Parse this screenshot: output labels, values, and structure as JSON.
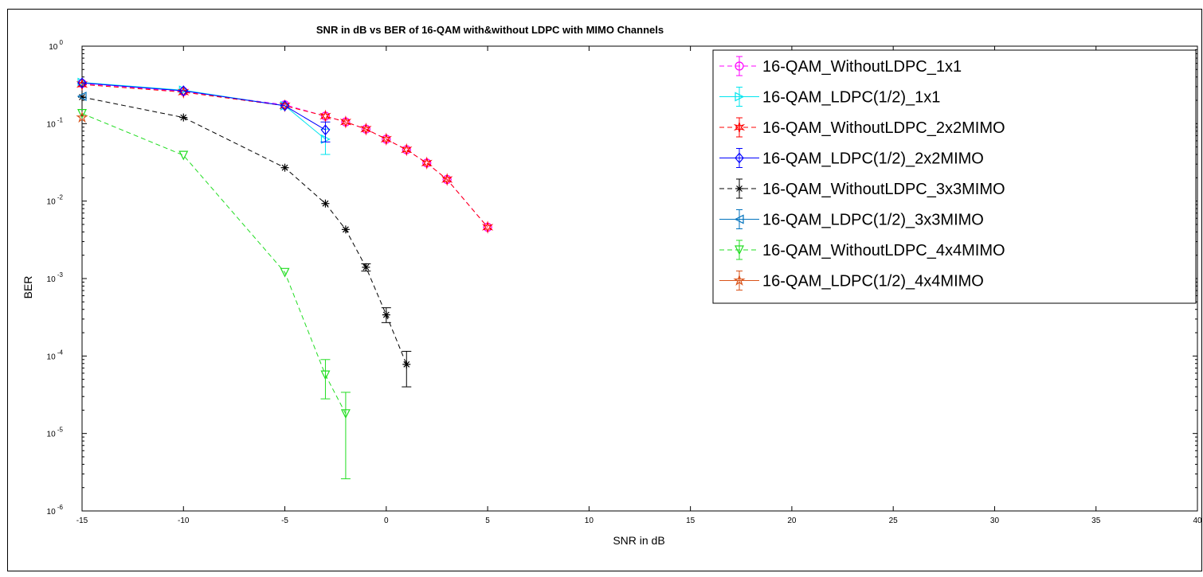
{
  "chart_data": {
    "type": "line",
    "title": "SNR in dB vs BER of  16-QAM with&without LDPC with MIMO Channels",
    "xlabel": "SNR in dB",
    "ylabel": "BER",
    "xlim": [
      -15,
      40
    ],
    "ylim": [
      1e-06,
      1
    ],
    "yscale": "log",
    "grid": false,
    "legend_position": "top-right",
    "x_ticks": [
      "-15",
      "-10",
      "-5",
      "0",
      "5",
      "10",
      "15",
      "20",
      "25",
      "30",
      "35",
      "40"
    ],
    "y_ticks": [
      {
        "base": "10",
        "exp": "0"
      },
      {
        "base": "10",
        "exp": "-1"
      },
      {
        "base": "10",
        "exp": "-2"
      },
      {
        "base": "10",
        "exp": "-3"
      },
      {
        "base": "10",
        "exp": "-4"
      },
      {
        "base": "10",
        "exp": "-5"
      },
      {
        "base": "10",
        "exp": "-6"
      }
    ],
    "series": [
      {
        "name": "16-QAM_WithoutLDPC_1x1",
        "color": "#ff00ff",
        "dash": "dashed",
        "marker": "circle",
        "x": [
          -15,
          -10,
          -5,
          -3,
          -2,
          -1,
          0,
          1,
          2,
          3,
          5
        ],
        "y": [
          0.33,
          0.26,
          0.175,
          0.125,
          0.105,
          0.085,
          0.063,
          0.046,
          0.031,
          0.019,
          0.0046
        ],
        "err": [
          [
            0.33,
            0.33
          ],
          [
            0.26,
            0.26
          ],
          [
            0.175,
            0.175
          ],
          [
            0.125,
            0.125
          ],
          [
            0.105,
            0.105
          ],
          [
            0.085,
            0.085
          ],
          [
            0.063,
            0.063
          ],
          [
            0.046,
            0.046
          ],
          [
            0.031,
            0.031
          ],
          [
            0.019,
            0.019
          ],
          [
            0.0046,
            0.0046
          ]
        ]
      },
      {
        "name": "16-QAM_LDPC(1/2)_1x1",
        "color": "#00e5ee",
        "dash": "solid",
        "marker": "triangle-right",
        "x": [
          -15,
          -10,
          -5,
          -3
        ],
        "y": [
          0.34,
          0.27,
          0.17,
          0.063
        ],
        "err": [
          [
            0.34,
            0.34
          ],
          [
            0.27,
            0.27
          ],
          [
            0.17,
            0.17
          ],
          [
            0.04,
            0.085
          ]
        ]
      },
      {
        "name": "16-QAM_WithoutLDPC_2x2MIMO",
        "color": "#ff0000",
        "dash": "dashed",
        "marker": "hexagram",
        "x": [
          -15,
          -10,
          -5,
          -3,
          -2,
          -1,
          0,
          1,
          2,
          3,
          5
        ],
        "y": [
          0.32,
          0.255,
          0.17,
          0.125,
          0.105,
          0.085,
          0.063,
          0.046,
          0.031,
          0.019,
          0.0046
        ],
        "err": [
          [
            0.32,
            0.32
          ],
          [
            0.255,
            0.255
          ],
          [
            0.17,
            0.17
          ],
          [
            0.125,
            0.125
          ],
          [
            0.105,
            0.105
          ],
          [
            0.085,
            0.085
          ],
          [
            0.063,
            0.063
          ],
          [
            0.046,
            0.046
          ],
          [
            0.031,
            0.031
          ],
          [
            0.019,
            0.019
          ],
          [
            0.0046,
            0.0046
          ]
        ]
      },
      {
        "name": "16-QAM_LDPC(1/2)_2x2MIMO",
        "color": "#0000ff",
        "dash": "solid",
        "marker": "diamond",
        "x": [
          -15,
          -10,
          -5,
          -3
        ],
        "y": [
          0.335,
          0.265,
          0.17,
          0.083
        ],
        "err": [
          [
            0.335,
            0.335
          ],
          [
            0.265,
            0.265
          ],
          [
            0.17,
            0.17
          ],
          [
            0.058,
            0.105
          ]
        ]
      },
      {
        "name": "16-QAM_WithoutLDPC_3x3MIMO",
        "color": "#000000",
        "dash": "dashed",
        "marker": "asterisk",
        "x": [
          -15,
          -10,
          -5,
          -3,
          -2,
          -1,
          0,
          1
        ],
        "y": [
          0.22,
          0.12,
          0.027,
          0.0093,
          0.0043,
          0.0014,
          0.00034,
          7.8e-05
        ],
        "err": [
          [
            0.22,
            0.22
          ],
          [
            0.12,
            0.12
          ],
          [
            0.027,
            0.027
          ],
          [
            0.0093,
            0.0093
          ],
          [
            0.0043,
            0.0043
          ],
          [
            0.00125,
            0.00155
          ],
          [
            0.00027,
            0.00042
          ],
          [
            4e-05,
            0.000115
          ]
        ]
      },
      {
        "name": "16-QAM_LDPC(1/2)_3x3MIMO",
        "color": "#0072bd",
        "dash": "solid",
        "marker": "triangle-left",
        "x": [
          -15
        ],
        "y": [
          0.225
        ],
        "err": [
          [
            0.225,
            0.225
          ]
        ]
      },
      {
        "name": "16-QAM_WithoutLDPC_4x4MIMO",
        "color": "#22dd22",
        "dash": "dashed",
        "marker": "triangle-down",
        "x": [
          -15,
          -10,
          -5,
          -3,
          -2
        ],
        "y": [
          0.135,
          0.039,
          0.0012,
          5.7e-05,
          1.8e-05
        ],
        "err": [
          [
            0.135,
            0.135
          ],
          [
            0.039,
            0.039
          ],
          [
            0.0012,
            0.0012
          ],
          [
            2.8e-05,
            9e-05
          ],
          [
            2.6e-06,
            3.4e-05
          ]
        ]
      },
      {
        "name": "16-QAM_LDPC(1/2)_4x4MIMO",
        "color": "#d95319",
        "dash": "solid",
        "marker": "pentagram",
        "x": [
          -15
        ],
        "y": [
          0.12
        ],
        "err": [
          [
            0.12,
            0.12
          ]
        ]
      }
    ]
  }
}
